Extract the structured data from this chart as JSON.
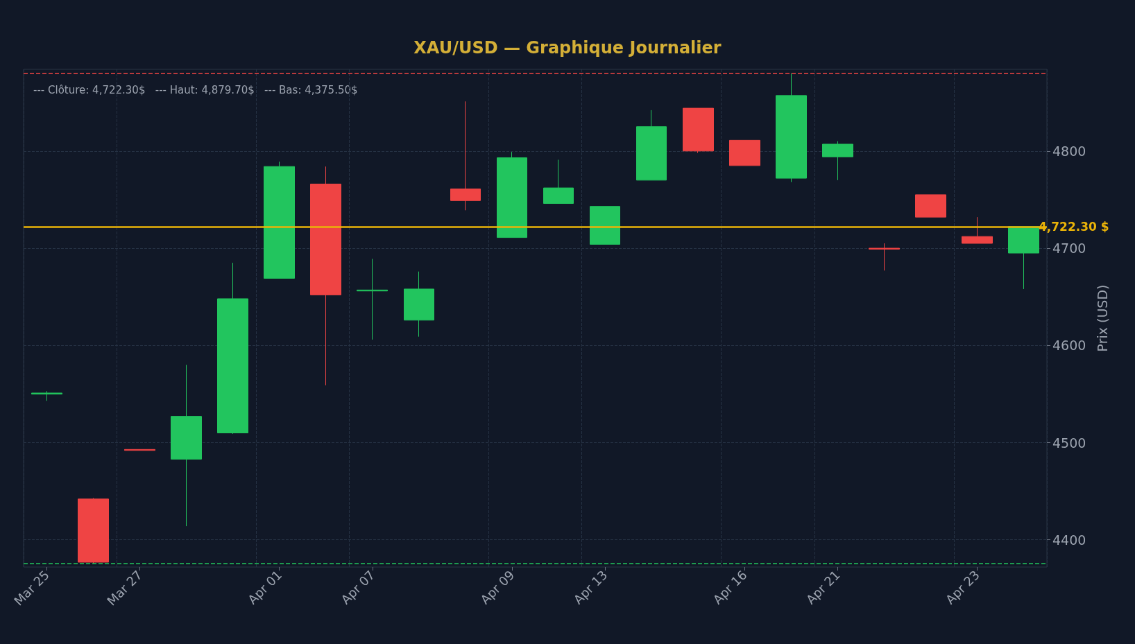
{
  "chart_data": {
    "type": "candlestick",
    "title": "XAU/USD — Graphique Journalier",
    "ylabel": "Prix (USD)",
    "categories": [
      "Mar 25",
      null,
      "Mar 27",
      null,
      null,
      "Apr 01",
      null,
      "Apr 07",
      null,
      null,
      "Apr 09",
      null,
      "Apr 13",
      null,
      null,
      "Apr 16",
      null,
      "Apr 21",
      null,
      null,
      "Apr 23",
      null
    ],
    "ohlc": [
      [
        4550,
        4553,
        4543,
        4551
      ],
      [
        4442,
        4443,
        4375.5,
        4377
      ],
      [
        4493,
        4493,
        4492,
        4492
      ],
      [
        4483,
        4580,
        4414,
        4527
      ],
      [
        4510,
        4685,
        4509,
        4648
      ],
      [
        4669,
        4789,
        4669,
        4784
      ],
      [
        4766,
        4784,
        4559,
        4652
      ],
      [
        4656,
        4689,
        4606,
        4657
      ],
      [
        4626,
        4676,
        4609,
        4658
      ],
      [
        4761,
        4851,
        4739,
        4749
      ],
      [
        4711,
        4799,
        4711,
        4793
      ],
      [
        4746,
        4791,
        4746,
        4762
      ],
      [
        4704,
        4743,
        4704,
        4743
      ],
      [
        4770,
        4842,
        4770,
        4825
      ],
      [
        4844,
        4844,
        4798,
        4800
      ],
      [
        4811,
        4811,
        4785,
        4785
      ],
      [
        4772,
        4879.7,
        4768,
        4857
      ],
      [
        4794,
        4810,
        4770,
        4807
      ],
      [
        4700,
        4705,
        4677,
        4699
      ],
      [
        4755,
        4755,
        4732,
        4732
      ],
      [
        4712,
        4732,
        4705,
        4705
      ],
      [
        4695,
        4722.3,
        4658,
        4722.3
      ]
    ],
    "colors": [
      "#22c55e",
      "#ef4444",
      "#ef4444",
      "#22c55e",
      "#22c55e",
      "#22c55e",
      "#ef4444",
      "#22c55e",
      "#22c55e",
      "#ef4444",
      "#22c55e",
      "#22c55e",
      "#22c55e",
      "#22c55e",
      "#ef4444",
      "#ef4444",
      "#22c55e",
      "#22c55e",
      "#ef4444",
      "#ef4444",
      "#ef4444",
      "#22c55e"
    ],
    "ylim": [
      4372,
      4884
    ],
    "yticks": [
      4400,
      4500,
      4600,
      4700,
      4800
    ],
    "grid": true,
    "ref_lines": [
      {
        "axis": "y",
        "value": 4722.3,
        "label": "4,722.30 $",
        "color": "#eab308",
        "line_style": "solid"
      },
      {
        "axis": "y",
        "value": 4879.7,
        "color": "#ef4444",
        "line_style": "dashed"
      },
      {
        "axis": "y",
        "value": 4375.5,
        "color": "#22c55e",
        "line_style": "dashed"
      }
    ],
    "annotations": [
      "--- Clôture: 4,722.30$   --- Haut: 4,879.70$   --- Bas: 4,375.50$"
    ]
  }
}
